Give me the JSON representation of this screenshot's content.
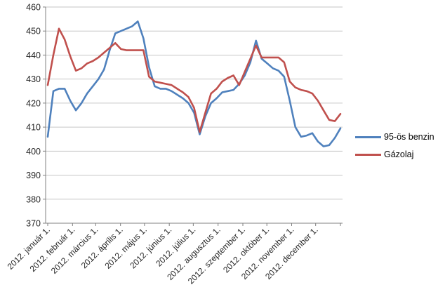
{
  "legend": {
    "items": [
      {
        "label": "95-ös benzin",
        "color": "#4F81BD"
      },
      {
        "label": "Gázolaj",
        "color": "#C0504D"
      }
    ]
  },
  "axes": {
    "y_tick_labels": [
      "370",
      "380",
      "390",
      "400",
      "410",
      "420",
      "430",
      "440",
      "450",
      "460"
    ],
    "x_tick_labels": [
      "2012. január 1.",
      "2012. február 1.",
      "2012. március 1.",
      "2012. április 1.",
      "2012. május 1.",
      "2012. június 1.",
      "2012. július 1.",
      "2012. augusztus 1.",
      "2012. szeptember 1.",
      "2012. október 1.",
      "2012. november 1.",
      "2012. december 1."
    ]
  },
  "colors": {
    "gridline": "#C6C6C6",
    "axis": "#808080",
    "background": "#FFFFFF",
    "tick_text": "#262626"
  },
  "chart_data": {
    "type": "line",
    "title": "",
    "xlabel": "",
    "ylabel": "",
    "ylim": [
      370,
      460
    ],
    "y_ticks": [
      370,
      380,
      390,
      400,
      410,
      420,
      430,
      440,
      450,
      460
    ],
    "grid": true,
    "legend_position": "right",
    "x_tick_labels": [
      "2012. január 1.",
      "2012. február 1.",
      "2012. március 1.",
      "2012. április 1.",
      "2012. május 1.",
      "2012. június 1.",
      "2012. július 1.",
      "2012. augusztus 1.",
      "2012. szeptember 1.",
      "2012. október 1.",
      "2012. november 1.",
      "2012. december 1."
    ],
    "x_points": 53,
    "x_point_spacing": "weekly across year 2012",
    "series": [
      {
        "name": "95-ös benzin",
        "color": "#4F81BD",
        "values": [
          406,
          425,
          426,
          426,
          421,
          417,
          420,
          424,
          427,
          430,
          434,
          442,
          449,
          450,
          451,
          452,
          454,
          447,
          435,
          427,
          426,
          426,
          425,
          423.5,
          422,
          420,
          416,
          407,
          414.5,
          420,
          422,
          424.5,
          425,
          425.5,
          428,
          431.5,
          437,
          446,
          438.5,
          436.5,
          434.5,
          433.5,
          431,
          421,
          410,
          406,
          406.5,
          407.5,
          404,
          402,
          402.5,
          405.5,
          409.5
        ]
      },
      {
        "name": "Gázolaj",
        "color": "#C0504D",
        "values": [
          427.5,
          440,
          451,
          446.5,
          439.5,
          433.5,
          434.5,
          436.5,
          437.5,
          439,
          441,
          443,
          445,
          442.5,
          442,
          442,
          442,
          442,
          431,
          429,
          428.5,
          428,
          427.5,
          426,
          424.5,
          422.5,
          418,
          408,
          416,
          424,
          426,
          429,
          430.5,
          431.5,
          427.5,
          433,
          438.5,
          444,
          439,
          439,
          439,
          439,
          437,
          429,
          426.5,
          425.5,
          425,
          424,
          421,
          417,
          413,
          412.5,
          415.5
        ]
      }
    ]
  }
}
